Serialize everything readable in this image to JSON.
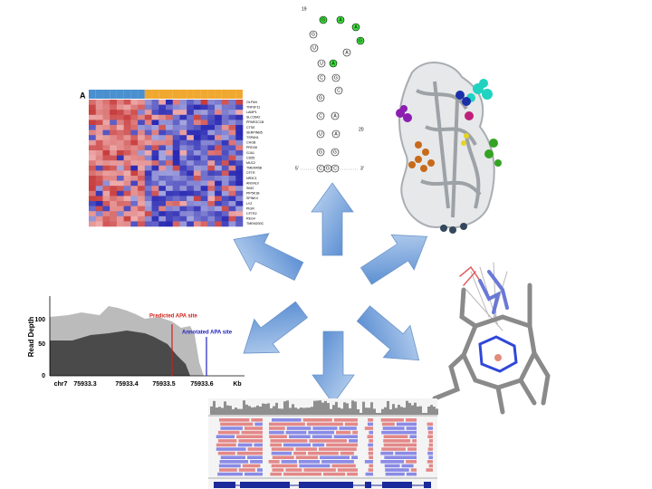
{
  "heatmap": {
    "label": "A",
    "genes": [
      "OLFM4",
      "TNFSF11",
      "LAMP1",
      "SLC26A2",
      "PPARGC1B",
      "CTSE",
      "SERPINB5",
      "TSPAN1",
      "CHGB",
      "PRDX6",
      "GJA1",
      "CD55",
      "MUC2",
      "TMEM45B",
      "CFTR",
      "NR3C1",
      "ANXA10",
      "SIM2",
      "PIP5K1B",
      "SPINK4",
      "LYZ",
      "PIGR",
      "CFTR2",
      "REG4",
      "TMEM200C"
    ]
  },
  "rna": {
    "position_labels": [
      "19",
      "20"
    ],
    "five_prime": "5'",
    "three_prime": "3'",
    "nucleotides": [
      "G",
      "A",
      "A",
      "G",
      "G",
      "U",
      "A",
      "U",
      "A",
      "C",
      "G",
      "C",
      "G",
      "C",
      "A",
      "U",
      "A",
      "G",
      "G",
      "C",
      "C",
      "G"
    ]
  },
  "read_depth": {
    "y_axis_label": "Read Depth",
    "yticks": [
      100,
      50,
      0
    ],
    "xticks": [
      "chr7",
      75933.3,
      75933.4,
      75933.5,
      75933.6,
      "Kb"
    ],
    "annotations": [
      "Predicted APA site",
      "Annotated APA site"
    ]
  }
}
